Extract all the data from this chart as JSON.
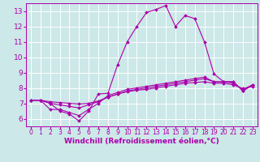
{
  "background_color": "#cce8e8",
  "grid_color": "#ffffff",
  "line_color": "#aa00aa",
  "xlabel": "Windchill (Refroidissement éolien,°C)",
  "xlabel_fontsize": 6.5,
  "xtick_fontsize": 5.5,
  "ytick_fontsize": 6.5,
  "xlim": [
    -0.5,
    23.5
  ],
  "ylim": [
    5.5,
    13.5
  ],
  "yticks": [
    6,
    7,
    8,
    9,
    10,
    11,
    12,
    13
  ],
  "xticks": [
    0,
    1,
    2,
    3,
    4,
    5,
    6,
    7,
    8,
    9,
    10,
    11,
    12,
    13,
    14,
    15,
    16,
    17,
    18,
    19,
    20,
    21,
    22,
    23
  ],
  "curves": [
    [
      7.2,
      7.2,
      7.0,
      6.5,
      6.3,
      5.85,
      6.5,
      7.6,
      7.65,
      9.5,
      11.0,
      12.0,
      12.9,
      13.1,
      13.35,
      12.0,
      12.7,
      12.5,
      11.0,
      8.9,
      8.4,
      8.4,
      7.8,
      8.2
    ],
    [
      7.2,
      7.2,
      6.6,
      6.6,
      6.4,
      6.2,
      6.6,
      7.0,
      7.5,
      7.7,
      7.9,
      8.0,
      8.1,
      8.2,
      8.3,
      8.4,
      8.5,
      8.6,
      8.7,
      8.4,
      8.4,
      8.4,
      7.8,
      8.2
    ],
    [
      7.2,
      7.2,
      7.0,
      6.9,
      6.8,
      6.7,
      6.9,
      7.1,
      7.4,
      7.6,
      7.8,
      7.9,
      8.0,
      8.1,
      8.2,
      8.3,
      8.4,
      8.5,
      8.6,
      8.4,
      8.4,
      8.3,
      7.9,
      8.2
    ],
    [
      7.2,
      7.2,
      7.1,
      7.05,
      7.0,
      6.95,
      7.0,
      7.15,
      7.4,
      7.6,
      7.75,
      7.85,
      7.9,
      8.0,
      8.1,
      8.2,
      8.3,
      8.35,
      8.4,
      8.3,
      8.3,
      8.2,
      7.95,
      8.1
    ]
  ]
}
